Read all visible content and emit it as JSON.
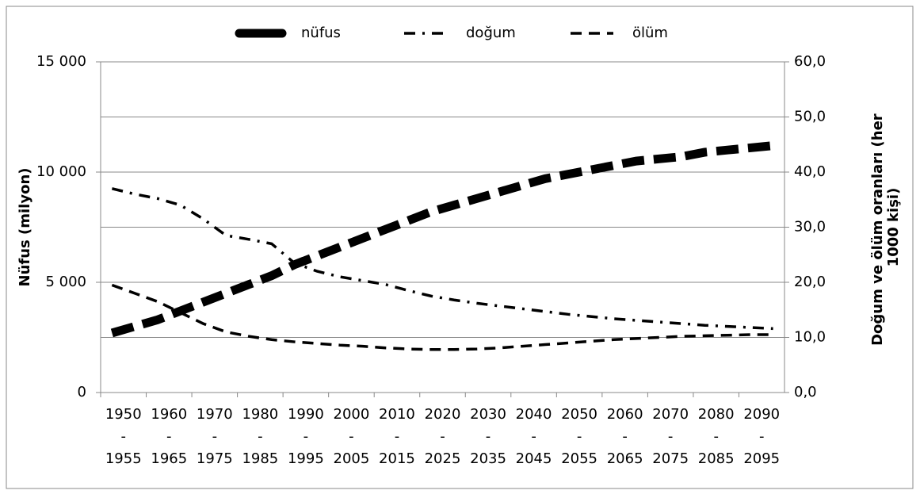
{
  "chart_data": {
    "type": "line",
    "categories": [
      "1950-1955",
      null,
      "1960-1965",
      null,
      "1970-1975",
      null,
      "1980-1985",
      null,
      "1990-1995",
      null,
      "2000-2005",
      null,
      "2010-2015",
      null,
      "2020-2025",
      null,
      "2030-2035",
      null,
      "2040-2045",
      null,
      "2050-2055",
      null,
      "2060-2065",
      null,
      "2070-2075",
      null,
      "2080-2085",
      null,
      "2090-2095",
      null
    ],
    "series": [
      {
        "name": "nüfus",
        "color": "#000000",
        "axis": "y",
        "values": [
          2700,
          3000,
          3300,
          3700,
          4100,
          4500,
          4900,
          5300,
          5800,
          6200,
          6600,
          7000,
          7400,
          7800,
          8200,
          8500,
          8800,
          9100,
          9400,
          9700,
          9900,
          10100,
          10300,
          10500,
          10600,
          10700,
          10900,
          11000,
          11100,
          11200
        ]
      },
      {
        "name": "doğum",
        "color": "#000000",
        "axis": "y2",
        "values": [
          37.0,
          36.0,
          35.2,
          34.0,
          31.5,
          28.5,
          27.8,
          27.0,
          23.5,
          22.0,
          21.0,
          20.3,
          19.6,
          18.5,
          17.5,
          16.8,
          16.2,
          15.7,
          15.2,
          14.7,
          14.2,
          13.8,
          13.4,
          13.1,
          12.8,
          12.5,
          12.2,
          12.0,
          11.8,
          11.6
        ]
      },
      {
        "name": "ölüm",
        "color": "#000000",
        "axis": "y2",
        "values": [
          19.5,
          18.0,
          16.5,
          14.5,
          12.5,
          11.0,
          10.2,
          9.6,
          9.2,
          8.9,
          8.6,
          8.4,
          8.1,
          7.9,
          7.8,
          7.8,
          7.9,
          8.1,
          8.4,
          8.7,
          9.0,
          9.3,
          9.6,
          9.8,
          10.0,
          10.2,
          10.3,
          10.4,
          10.5,
          10.5
        ]
      }
    ],
    "ylabel": "Nüfus (milyon)",
    "y2label": "Doğum ve ölüm oranları (her 1000 kişi)",
    "ylim": [
      0,
      15000
    ],
    "yticks": [
      0,
      {
        "value": 5000,
        "label": "5 000"
      },
      {
        "value": 10000,
        "label": "10 000"
      },
      {
        "value": 15000,
        "label": "15 000"
      }
    ],
    "y2lim": [
      0,
      60
    ],
    "y2ticks": [
      {
        "value": 0,
        "label": "0,0"
      },
      {
        "value": 10,
        "label": "10,0"
      },
      {
        "value": 20,
        "label": "20,0"
      },
      {
        "value": 30,
        "label": "30,0"
      },
      {
        "value": 40,
        "label": "40,0"
      },
      {
        "value": 50,
        "label": "50,0"
      },
      {
        "value": 60,
        "label": "60,0"
      }
    ],
    "grid": true,
    "legend": "top"
  }
}
